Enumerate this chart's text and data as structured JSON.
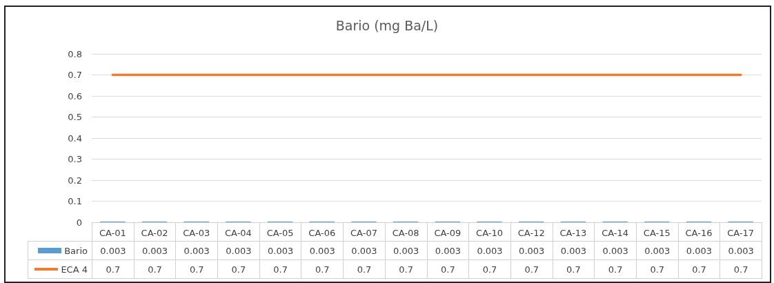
{
  "chart_data": {
    "type": "bar",
    "title": "Bario (mg Ba/L)",
    "categories": [
      "CA-01",
      "CA-02",
      "CA-03",
      "CA-04",
      "CA-05",
      "CA-06",
      "CA-07",
      "CA-08",
      "CA-09",
      "CA-10",
      "CA-12",
      "CA-13",
      "CA-14",
      "CA-15",
      "CA-16",
      "CA-17"
    ],
    "series": [
      {
        "name": "Bario",
        "color": "#5b9bd5",
        "values": [
          0.003,
          0.003,
          0.003,
          0.003,
          0.003,
          0.003,
          0.003,
          0.003,
          0.003,
          0.003,
          0.003,
          0.003,
          0.003,
          0.003,
          0.003,
          0.003
        ]
      },
      {
        "name": "ECA 4",
        "type": "line",
        "color": "#ed7d31",
        "values": [
          0.7,
          0.7,
          0.7,
          0.7,
          0.7,
          0.7,
          0.7,
          0.7,
          0.7,
          0.7,
          0.7,
          0.7,
          0.7,
          0.7,
          0.7,
          0.7
        ]
      }
    ],
    "ylim": [
      0,
      0.8
    ],
    "yticks": [
      0,
      0.1,
      0.2,
      0.3,
      0.4,
      0.5,
      0.6,
      0.7,
      0.8
    ],
    "grid": "y",
    "legend": "bottom",
    "data_labels": true,
    "marker": "none",
    "line_style": "solid"
  }
}
